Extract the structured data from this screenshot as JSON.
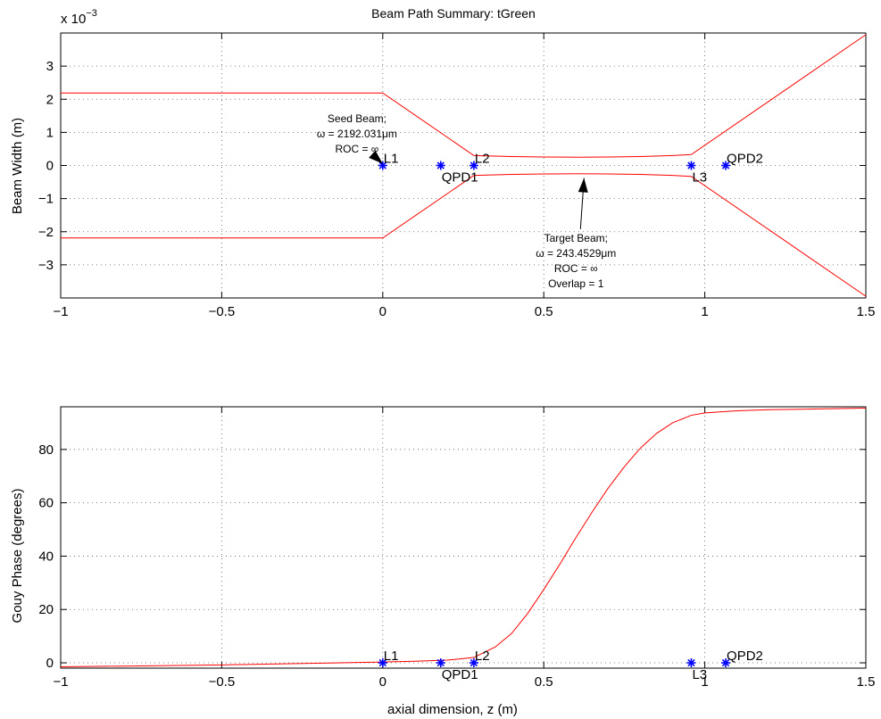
{
  "chart_data": [
    {
      "type": "line",
      "title": "Beam Path Summary: tGreen",
      "ylabel": "Beam Width (m)",
      "xlabel": "",
      "scale_label": "x 10",
      "scale_exponent": "−3",
      "xlim": [
        -1,
        1.5
      ],
      "ylim": [
        -4,
        4
      ],
      "xticks": [
        "−1",
        "−0.5",
        "0",
        "0.5",
        "1",
        "1.5"
      ],
      "xtick_values": [
        -1,
        -0.5,
        0,
        0.5,
        1,
        1.5
      ],
      "yticks": [
        "−3",
        "−2",
        "−1",
        "0",
        "1",
        "2",
        "3"
      ],
      "ytick_values": [
        -3,
        -2,
        -1,
        0,
        1,
        2,
        3
      ],
      "grid": true,
      "series": [
        {
          "color": "#ff0000",
          "x": [
            -1,
            0,
            0.283,
            0.4,
            0.5,
            0.6,
            0.7,
            0.8,
            0.9,
            0.958,
            1.5
          ],
          "y": [
            2.19,
            2.19,
            0.3,
            0.27,
            0.255,
            0.25,
            0.255,
            0.27,
            0.3,
            0.33,
            3.95
          ]
        },
        {
          "color": "#ff0000",
          "x": [
            -1,
            0,
            0.283,
            0.4,
            0.5,
            0.6,
            0.7,
            0.8,
            0.9,
            0.958,
            1.5
          ],
          "y": [
            -2.19,
            -2.19,
            -0.3,
            -0.27,
            -0.255,
            -0.25,
            -0.255,
            -0.27,
            -0.3,
            -0.33,
            -3.95
          ]
        }
      ],
      "optics": [
        {
          "label": "L1",
          "x": 0,
          "label_pos": "above"
        },
        {
          "label": "QPD1",
          "x": 0.18,
          "label_pos": "below"
        },
        {
          "label": "L2",
          "x": 0.283,
          "label_pos": "above"
        },
        {
          "label": "L3",
          "x": 0.958,
          "label_pos": "below"
        },
        {
          "label": "QPD2",
          "x": 1.065,
          "label_pos": "above"
        }
      ],
      "annotations": [
        {
          "lines": [
            "Seed Beam;",
            "ω = 2192.031μm",
            "ROC = ∞"
          ],
          "at": [
            0,
            0
          ],
          "text_at": [
            -0.08,
            1.3
          ]
        },
        {
          "lines": [
            "Target Beam;",
            "ω = 243.4529μm",
            "ROC = ∞",
            "Overlap = 1"
          ],
          "at": [
            0.625,
            -0.27
          ],
          "text_at": [
            0.6,
            -2.3
          ]
        }
      ]
    },
    {
      "type": "line",
      "title": "",
      "ylabel": "Gouy Phase (degrees)",
      "xlabel": "axial dimension, z (m)",
      "xlim": [
        -1,
        1.5
      ],
      "ylim": [
        -2,
        96
      ],
      "xticks": [
        "−1",
        "−0.5",
        "0",
        "0.5",
        "1",
        "1.5"
      ],
      "xtick_values": [
        -1,
        -0.5,
        0,
        0.5,
        1,
        1.5
      ],
      "yticks": [
        "0",
        "20",
        "40",
        "60",
        "80"
      ],
      "ytick_values": [
        0,
        20,
        40,
        60,
        80
      ],
      "grid": true,
      "series": [
        {
          "color": "#ff0000",
          "x": [
            -1,
            -0.5,
            0,
            0.1,
            0.2,
            0.283,
            0.35,
            0.4,
            0.45,
            0.5,
            0.55,
            0.6,
            0.65,
            0.7,
            0.75,
            0.8,
            0.85,
            0.9,
            0.958,
            1.0,
            1.1,
            1.2,
            1.3,
            1.4,
            1.5
          ],
          "y": [
            -1.5,
            -0.8,
            0.3,
            0.6,
            1.0,
            2.0,
            6.0,
            11.0,
            18.5,
            27.5,
            37.0,
            47.0,
            56.5,
            65.5,
            73.5,
            80.5,
            86.0,
            90.0,
            92.8,
            93.7,
            94.5,
            94.9,
            95.1,
            95.3,
            95.5
          ]
        }
      ],
      "optics": [
        {
          "label": "L1",
          "x": 0,
          "label_pos": "above"
        },
        {
          "label": "QPD1",
          "x": 0.18,
          "label_pos": "below"
        },
        {
          "label": "L2",
          "x": 0.283,
          "label_pos": "above"
        },
        {
          "label": "L3",
          "x": 0.958,
          "label_pos": "below"
        },
        {
          "label": "QPD2",
          "x": 1.065,
          "label_pos": "above"
        }
      ],
      "annotations": []
    }
  ]
}
